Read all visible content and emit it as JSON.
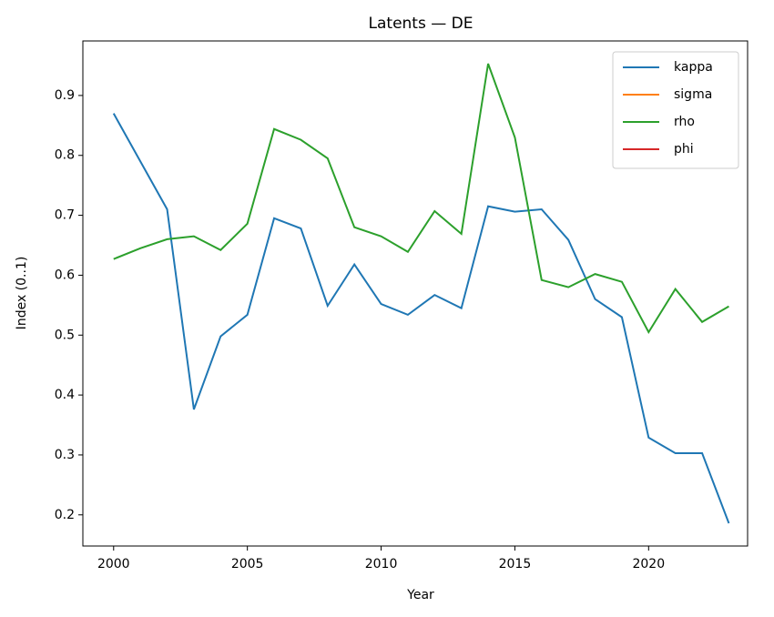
{
  "chart_data": {
    "type": "line",
    "title": "Latents — DE",
    "xlabel": "Year",
    "ylabel": "Index (0..1)",
    "x": [
      2000,
      2001,
      2002,
      2003,
      2004,
      2005,
      2006,
      2007,
      2008,
      2009,
      2010,
      2011,
      2012,
      2013,
      2014,
      2015,
      2016,
      2017,
      2018,
      2019,
      2020,
      2021,
      2022,
      2023
    ],
    "series": [
      {
        "name": "kappa",
        "color": "#1f77b4",
        "values": [
          0.87,
          0.79,
          0.71,
          0.376,
          0.498,
          0.534,
          0.695,
          0.678,
          0.549,
          0.618,
          0.552,
          0.534,
          0.567,
          0.545,
          0.715,
          0.706,
          0.71,
          0.659,
          0.56,
          0.53,
          0.329,
          0.303,
          0.303,
          0.186
        ]
      },
      {
        "name": "sigma",
        "color": "#ff7f0e",
        "values": [
          null,
          null,
          null,
          null,
          null,
          null,
          null,
          null,
          null,
          null,
          null,
          null,
          null,
          null,
          null,
          null,
          null,
          null,
          null,
          null,
          null,
          null,
          null,
          null
        ]
      },
      {
        "name": "rho",
        "color": "#2ca02c",
        "values": [
          0.627,
          0.645,
          0.66,
          0.665,
          0.642,
          0.686,
          0.844,
          0.826,
          0.795,
          0.68,
          0.665,
          0.639,
          0.707,
          0.669,
          0.953,
          0.83,
          0.592,
          0.58,
          0.602,
          0.589,
          0.505,
          0.577,
          0.522,
          0.548
        ]
      },
      {
        "name": "phi",
        "color": "#d62728",
        "values": [
          null,
          null,
          null,
          null,
          null,
          null,
          null,
          null,
          null,
          null,
          null,
          null,
          null,
          null,
          null,
          null,
          null,
          null,
          null,
          null,
          null,
          null,
          null,
          null
        ]
      }
    ],
    "xlim": [
      1998.85,
      2023.7
    ],
    "ylim": [
      0.148,
      0.991
    ],
    "xticks": [
      2000,
      2005,
      2010,
      2015,
      2020
    ],
    "yticks": [
      0.2,
      0.3,
      0.4,
      0.5,
      0.6,
      0.7,
      0.8,
      0.9
    ],
    "legend": "upper right"
  }
}
